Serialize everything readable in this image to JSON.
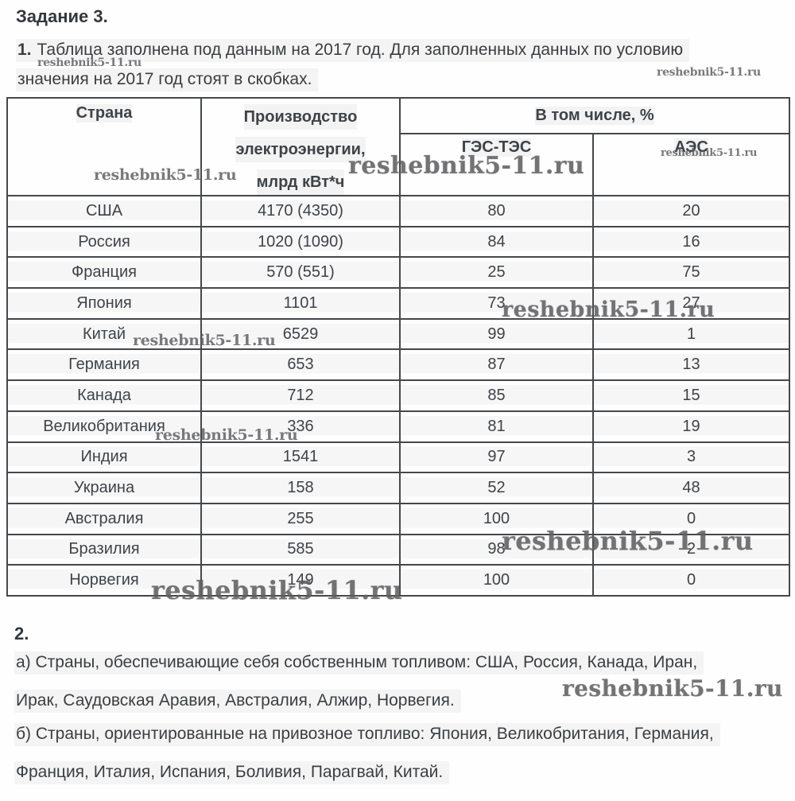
{
  "title": "Задание 3.",
  "intro": {
    "num": "1.",
    "line1": "Таблица заполнена под данным на 2017 год. Для заполненных данных по условию",
    "line2": "значения на 2017 год стоят в скобках."
  },
  "watermark": {
    "text": "reshebnik5-11.ru"
  },
  "table": {
    "header": {
      "country": "Страна",
      "production": [
        "Производство",
        "электроэнергии,",
        "млрд кВт*ч"
      ],
      "share": "В том числе, %",
      "hydro_thermal": "ГЭС-ТЭС",
      "nuclear": "АЭС"
    },
    "rows": [
      {
        "country": "США",
        "production": "4170 (4350)",
        "hydro_thermal": "80",
        "nuclear": "20"
      },
      {
        "country": "Россия",
        "production": "1020 (1090)",
        "hydro_thermal": "84",
        "nuclear": "16"
      },
      {
        "country": "Франция",
        "production": "570 (551)",
        "hydro_thermal": "25",
        "nuclear": "75"
      },
      {
        "country": "Япония",
        "production": "1101",
        "hydro_thermal": "73",
        "nuclear": "27"
      },
      {
        "country": "Китай",
        "production": "6529",
        "hydro_thermal": "99",
        "nuclear": "1"
      },
      {
        "country": "Германия",
        "production": "653",
        "hydro_thermal": "87",
        "nuclear": "13"
      },
      {
        "country": "Канада",
        "production": "712",
        "hydro_thermal": "85",
        "nuclear": "15"
      },
      {
        "country": "Великобритания",
        "production": "336",
        "hydro_thermal": "81",
        "nuclear": "19"
      },
      {
        "country": "Индия",
        "production": "1541",
        "hydro_thermal": "97",
        "nuclear": "3"
      },
      {
        "country": "Украина",
        "production": "158",
        "hydro_thermal": "52",
        "nuclear": "48"
      },
      {
        "country": "Австралия",
        "production": "255",
        "hydro_thermal": "100",
        "nuclear": "0"
      },
      {
        "country": "Бразилия",
        "production": "585",
        "hydro_thermal": "98",
        "nuclear": "2"
      },
      {
        "country": "Норвегия",
        "production": "149",
        "hydro_thermal": "100",
        "nuclear": "0"
      }
    ]
  },
  "section2": {
    "num": "2.",
    "a_line1": "а) Страны, обеспечивающие себя собственным топливом: США, Россия, Канада, Иран,",
    "a_line2": "Ирак, Саудовская Аравия, Австралия, Алжир, Норвегия.",
    "b_line1": "б) Страны, ориентированные на привозное топливо: Япония, Великобритания, Германия,",
    "b_line2": "Франция, Италия, Испания, Боливия, Парагвай, Китай."
  },
  "colors": {
    "text": "#3b3e41",
    "table_border": "#45484b",
    "watermark": "#5c5c5f",
    "line_highlight": "#f4f4f4"
  }
}
